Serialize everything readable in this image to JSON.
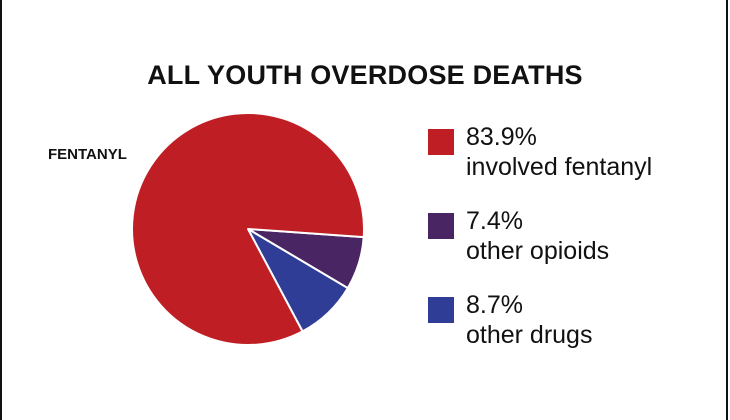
{
  "chart_data": {
    "type": "pie",
    "title": "ALL YOUTH OVERDOSE DEATHS",
    "slice_label": "FENTANYL",
    "slices": [
      {
        "value": 83.9,
        "percent_label": "83.9%",
        "description": "involved fentanyl",
        "color": "#bf1e24"
      },
      {
        "value": 7.4,
        "percent_label": "7.4%",
        "description": "other opioids",
        "color": "#4a2563"
      },
      {
        "value": 8.7,
        "percent_label": "8.7%",
        "description": "other drugs",
        "color": "#2f3d96"
      }
    ]
  }
}
